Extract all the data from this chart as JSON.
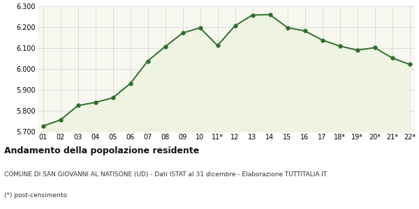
{
  "x_labels": [
    "01",
    "02",
    "03",
    "04",
    "05",
    "06",
    "07",
    "08",
    "09",
    "10",
    "11*",
    "12",
    "13",
    "14",
    "15",
    "16",
    "17",
    "18*",
    "19*",
    "20*",
    "21*",
    "22*"
  ],
  "y_values": [
    5727,
    5756,
    5825,
    5840,
    5862,
    5930,
    6038,
    6107,
    6172,
    6197,
    6112,
    6207,
    6258,
    6260,
    6198,
    6182,
    6138,
    6110,
    6090,
    6102,
    6053,
    6022
  ],
  "ylim": [
    5700,
    6300
  ],
  "yticks": [
    5700,
    5800,
    5900,
    6000,
    6100,
    6200,
    6300
  ],
  "line_color": "#2d6e2d",
  "fill_color": "#eef3e2",
  "marker_color": "#2d6e2d",
  "background_color": "#ffffff",
  "plot_bg_color": "#f7f9f0",
  "grid_color": "#d0d0d0",
  "title1": "Andamento della popolazione residente",
  "title2": "COMUNE DI SAN GIOVANNI AL NATISONE (UD) - Dati ISTAT al 31 dicembre - Elaborazione TUTTITALIA.IT",
  "title3": "(*) post-censimento",
  "title1_fontsize": 9,
  "title2_fontsize": 6.5,
  "title3_fontsize": 6.5,
  "tick_fontsize": 7,
  "marker_size": 3.5,
  "line_width": 1.4
}
